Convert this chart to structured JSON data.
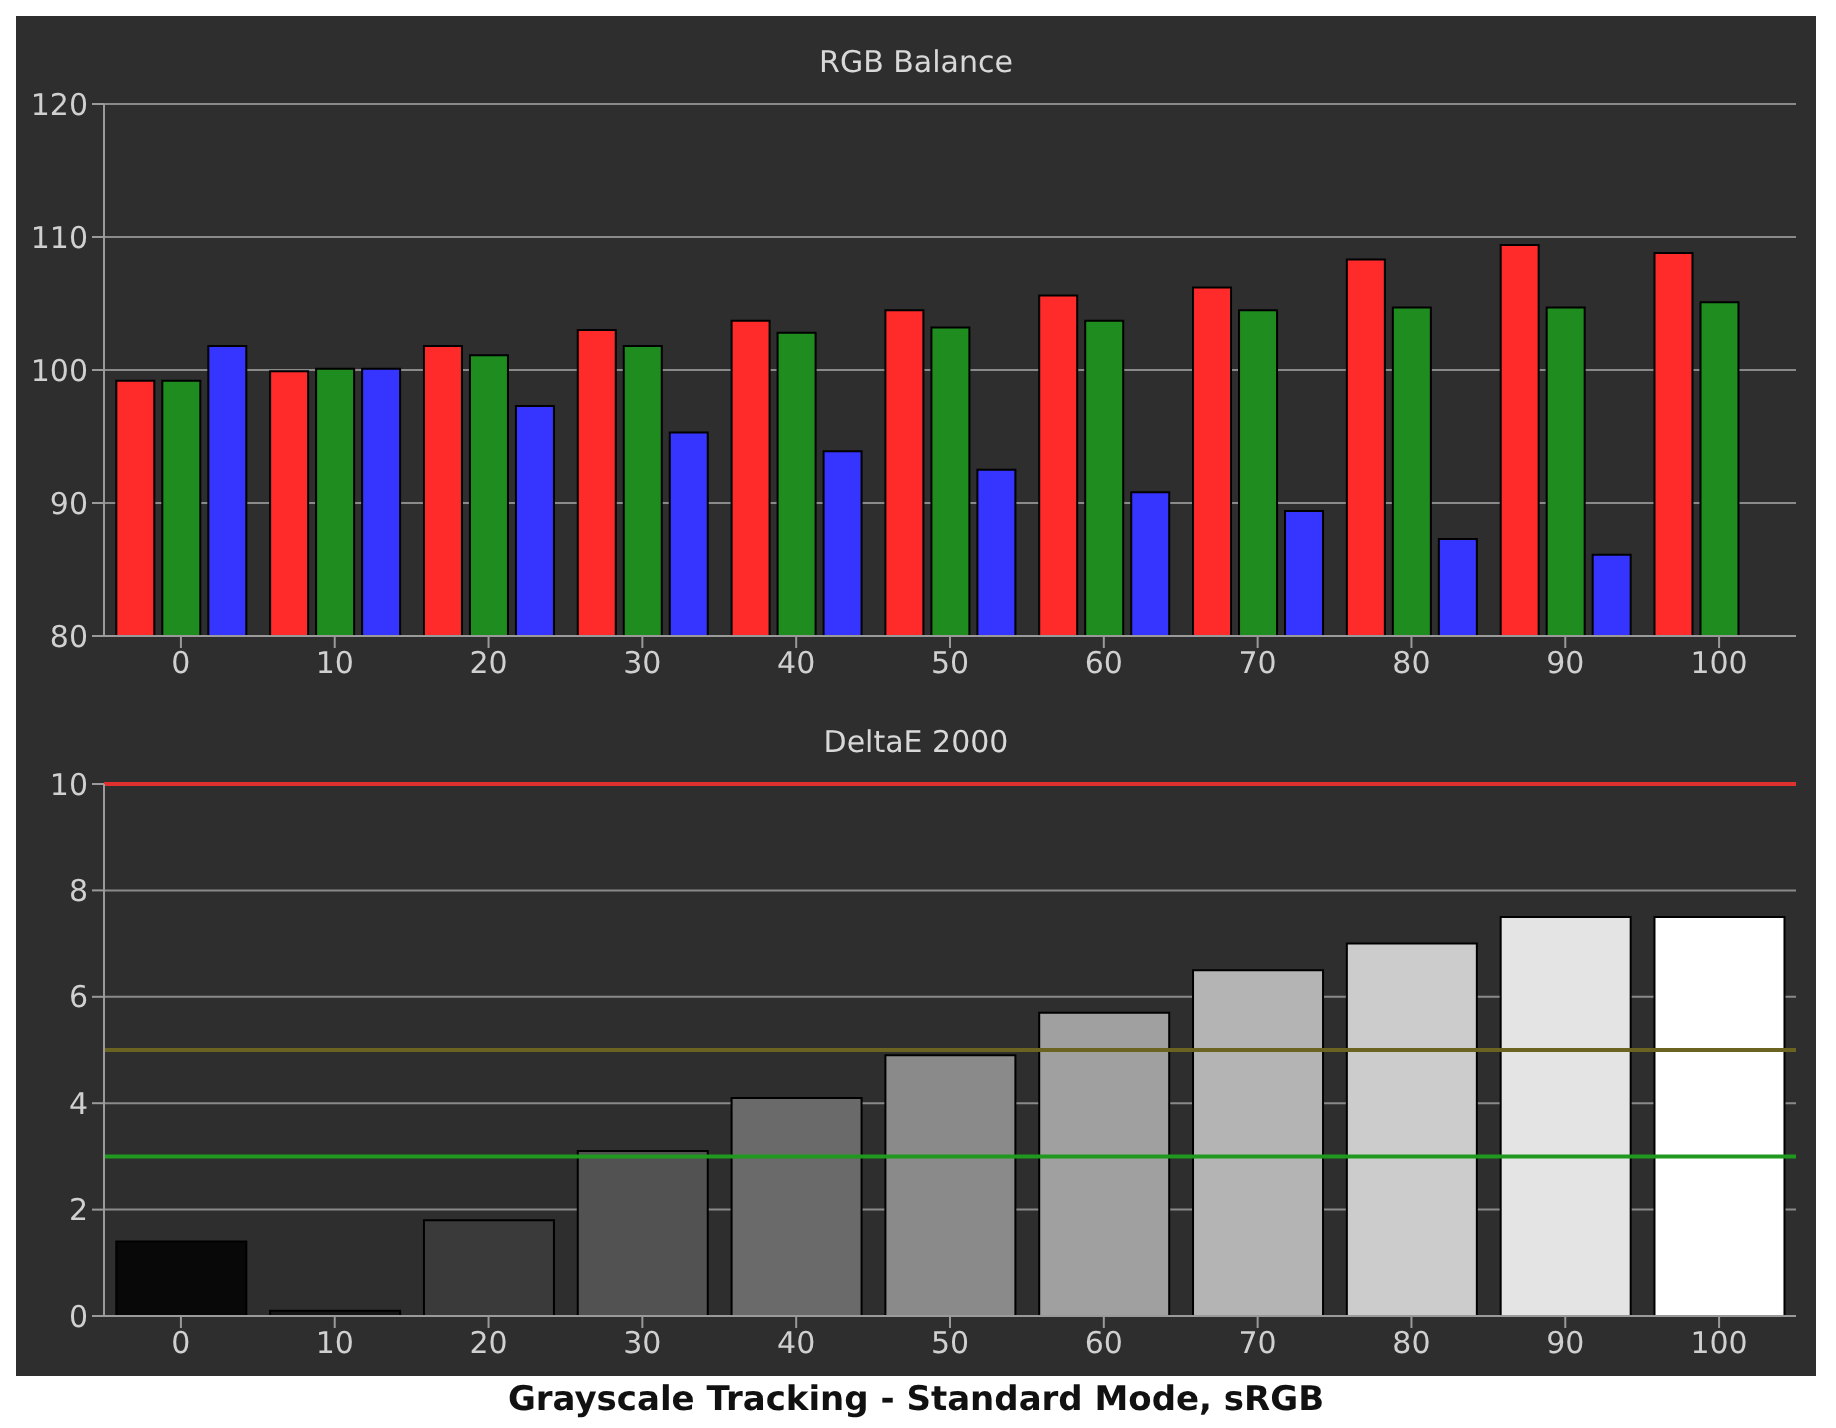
{
  "chart_data": [
    {
      "type": "bar",
      "title": "RGB Balance",
      "categories": [
        "0",
        "10",
        "20",
        "30",
        "40",
        "50",
        "60",
        "70",
        "80",
        "90",
        "100"
      ],
      "series": [
        {
          "color": "#ff2a2a",
          "values": [
            99.2,
            99.9,
            101.8,
            103.0,
            103.7,
            104.5,
            105.6,
            106.2,
            108.3,
            109.4,
            108.8
          ]
        },
        {
          "color": "#1e8c1e",
          "values": [
            99.2,
            100.1,
            101.1,
            101.8,
            102.8,
            103.2,
            103.7,
            104.5,
            104.7,
            104.7,
            105.1
          ]
        },
        {
          "color": "#3535ff",
          "values": [
            101.8,
            100.1,
            97.3,
            95.3,
            93.9,
            92.5,
            90.8,
            89.4,
            87.3,
            86.1,
            null
          ]
        }
      ],
      "ylim": [
        80,
        120
      ],
      "yticks": [
        80,
        90,
        100,
        110,
        120
      ],
      "grid": "y",
      "legend": false
    },
    {
      "type": "bar",
      "title": "DeltaE 2000",
      "categories": [
        "0",
        "10",
        "20",
        "30",
        "40",
        "50",
        "60",
        "70",
        "80",
        "90",
        "100"
      ],
      "values": [
        1.4,
        0.1,
        1.8,
        3.1,
        4.1,
        4.9,
        5.7,
        6.5,
        7.0,
        7.5,
        7.5
      ],
      "colors": [
        "#080808",
        "#151515",
        "#3a3a3a",
        "#525252",
        "#6a6a6a",
        "#8a8a8a",
        "#a0a0a0",
        "#b4b4b4",
        "#cccccc",
        "#e4e4e4",
        "#ffffff"
      ],
      "ylim": [
        0,
        10
      ],
      "yticks": [
        0,
        2,
        4,
        6,
        8,
        10
      ],
      "grid": "y",
      "legend": false,
      "ref_lines": [
        {
          "axis": "y",
          "value": 10,
          "color": "#e03030"
        },
        {
          "axis": "y",
          "value": 5,
          "color": "#6b6420"
        },
        {
          "axis": "y",
          "value": 3,
          "color": "#1f9a1f"
        }
      ],
      "annotations": [
        "Grayscale Tracking - Standard Mode, sRGB"
      ]
    }
  ]
}
